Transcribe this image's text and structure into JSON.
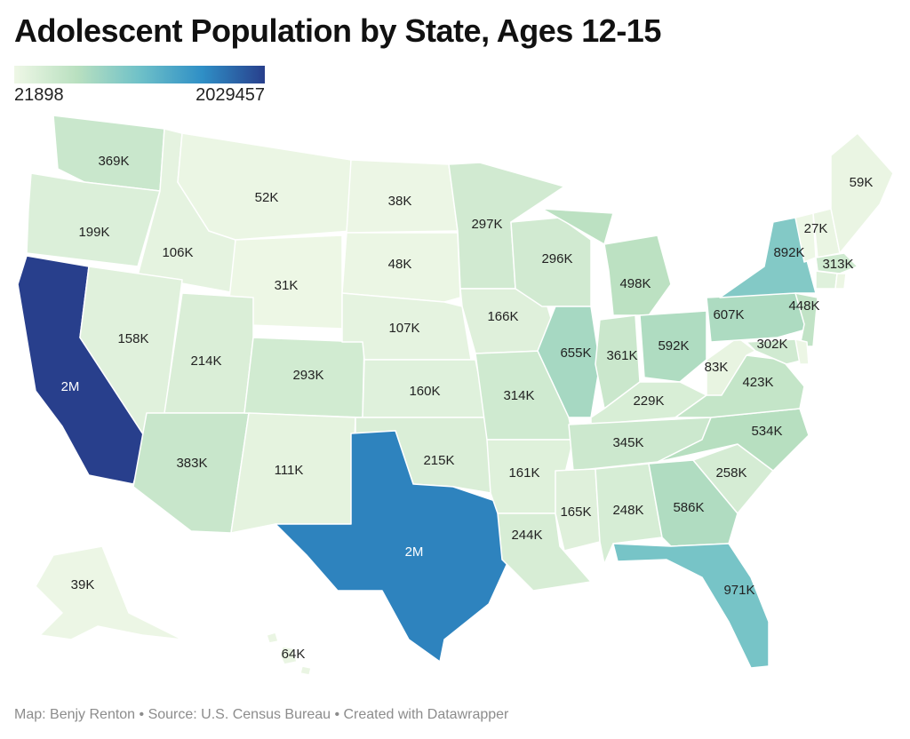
{
  "title": "Adolescent Population by State, Ages 12-15",
  "legend": {
    "min_label": "21898",
    "max_label": "2029457",
    "min": 21898,
    "max": 2029457,
    "colors": [
      "#eef7e6",
      "#b9e0c0",
      "#6fc1c8",
      "#2f8fc6",
      "#283f8c"
    ]
  },
  "footer": "Map: Benjy Renton • Source: U.S. Census Bureau • Created with Datawrapper",
  "states": [
    {
      "id": "WA",
      "label": "369K",
      "value": 369000
    },
    {
      "id": "OR",
      "label": "199K",
      "value": 199000
    },
    {
      "id": "CA",
      "label": "2M",
      "value": 2029457
    },
    {
      "id": "ID",
      "label": "106K",
      "value": 106000
    },
    {
      "id": "NV",
      "label": "158K",
      "value": 158000
    },
    {
      "id": "MT",
      "label": "52K",
      "value": 52000
    },
    {
      "id": "WY",
      "label": "31K",
      "value": 31000
    },
    {
      "id": "UT",
      "label": "214K",
      "value": 214000
    },
    {
      "id": "AZ",
      "label": "383K",
      "value": 383000
    },
    {
      "id": "CO",
      "label": "293K",
      "value": 293000
    },
    {
      "id": "NM",
      "label": "111K",
      "value": 111000
    },
    {
      "id": "ND",
      "label": "38K",
      "value": 38000
    },
    {
      "id": "SD",
      "label": "48K",
      "value": 48000
    },
    {
      "id": "NE",
      "label": "107K",
      "value": 107000
    },
    {
      "id": "KS",
      "label": "160K",
      "value": 160000
    },
    {
      "id": "OK",
      "label": "215K",
      "value": 215000
    },
    {
      "id": "TX",
      "label": "2M",
      "value": 1600000
    },
    {
      "id": "MN",
      "label": "297K",
      "value": 297000
    },
    {
      "id": "IA",
      "label": "166K",
      "value": 166000
    },
    {
      "id": "MO",
      "label": "314K",
      "value": 314000
    },
    {
      "id": "AR",
      "label": "161K",
      "value": 161000
    },
    {
      "id": "LA",
      "label": "244K",
      "value": 244000
    },
    {
      "id": "WI",
      "label": "296K",
      "value": 296000
    },
    {
      "id": "IL",
      "label": "655K",
      "value": 655000
    },
    {
      "id": "MI",
      "label": "498K",
      "value": 498000
    },
    {
      "id": "IN",
      "label": "361K",
      "value": 361000
    },
    {
      "id": "OH",
      "label": "592K",
      "value": 592000
    },
    {
      "id": "KY",
      "label": "229K",
      "value": 229000
    },
    {
      "id": "TN",
      "label": "345K",
      "value": 345000
    },
    {
      "id": "MS",
      "label": "165K",
      "value": 165000
    },
    {
      "id": "AL",
      "label": "248K",
      "value": 248000
    },
    {
      "id": "GA",
      "label": "586K",
      "value": 586000
    },
    {
      "id": "FL",
      "label": "971K",
      "value": 971000
    },
    {
      "id": "SC",
      "label": "258K",
      "value": 258000
    },
    {
      "id": "NC",
      "label": "534K",
      "value": 534000
    },
    {
      "id": "VA",
      "label": "423K",
      "value": 423000
    },
    {
      "id": "WV",
      "label": "83K",
      "value": 83000
    },
    {
      "id": "PA",
      "label": "607K",
      "value": 607000
    },
    {
      "id": "NY",
      "label": "892K",
      "value": 892000
    },
    {
      "id": "NJ",
      "label": "448K",
      "value": 448000
    },
    {
      "id": "MD",
      "label": "302K",
      "value": 302000
    },
    {
      "id": "VT",
      "label": "27K",
      "value": 27000
    },
    {
      "id": "NH",
      "label": "",
      "value": 60000
    },
    {
      "id": "ME",
      "label": "59K",
      "value": 59000
    },
    {
      "id": "MA",
      "label": "313K",
      "value": 313000
    },
    {
      "id": "CT",
      "label": "",
      "value": 160000
    },
    {
      "id": "RI",
      "label": "",
      "value": 45000
    },
    {
      "id": "DE",
      "label": "",
      "value": 40000
    },
    {
      "id": "AK",
      "label": "39K",
      "value": 39000
    },
    {
      "id": "HI",
      "label": "64K",
      "value": 64000
    }
  ]
}
